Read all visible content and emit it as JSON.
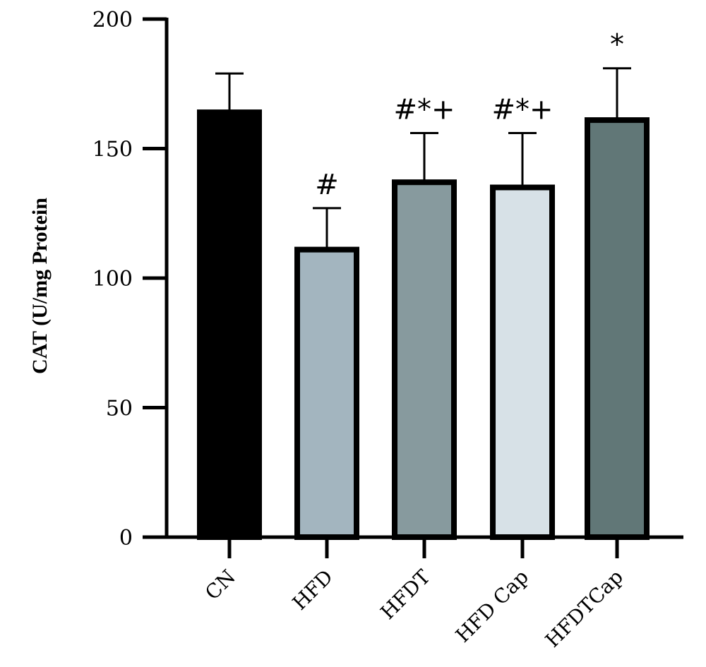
{
  "chart_data": {
    "type": "bar",
    "title": "",
    "xlabel": "",
    "ylabel": "CAT (U/mg Protein",
    "ylim": [
      0,
      200
    ],
    "yticks": [
      0,
      50,
      100,
      150,
      200
    ],
    "grid": false,
    "categories": [
      "CN",
      "HFD",
      "HFDT",
      "HFD Cap",
      "HFDTCap"
    ],
    "values": [
      164,
      111,
      137,
      135,
      161
    ],
    "errors": [
      15,
      16,
      19,
      21,
      20
    ],
    "bar_colors": [
      "#000000",
      "#a3b5bf",
      "#879a9e",
      "#d7e1e7",
      "#617777"
    ],
    "annotations": [
      "",
      "#",
      "#*+",
      "#*+",
      "*"
    ]
  }
}
